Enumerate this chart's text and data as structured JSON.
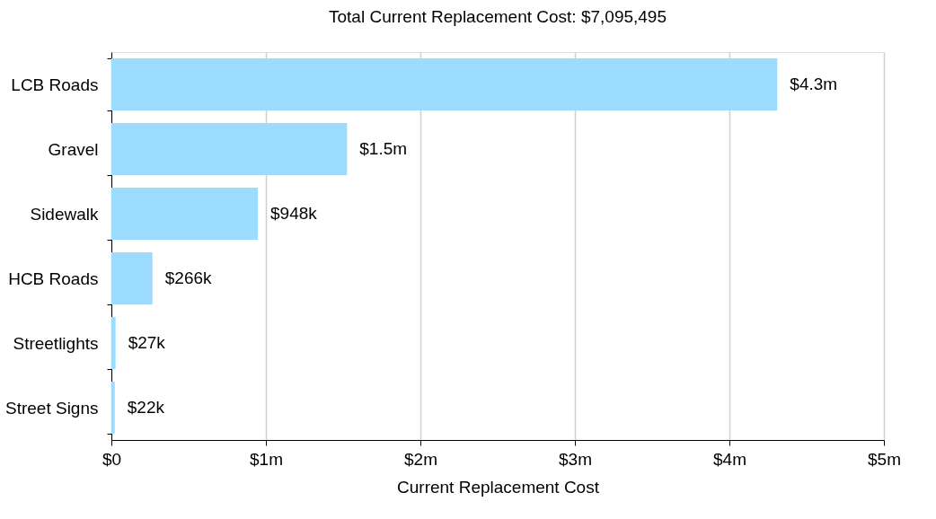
{
  "chart_data": {
    "type": "bar",
    "orientation": "horizontal",
    "title": "Total Current Replacement Cost: $7,095,495",
    "xlabel": "Current Replacement Cost",
    "categories": [
      "LCB Roads",
      "Gravel",
      "Sidewalk",
      "HCB Roads",
      "Streetlights",
      "Street Signs"
    ],
    "values": [
      4310000,
      1525000,
      948000,
      266000,
      27000,
      22000
    ],
    "value_labels": [
      "$4.3m",
      "$1.5m",
      "$948k",
      "$266k",
      "$27k",
      "$22k"
    ],
    "color": "#9bdcff",
    "xlim": [
      0,
      5000000
    ],
    "xticks": [
      {
        "value": 0,
        "label": "$0"
      },
      {
        "value": 1000000,
        "label": "$1m"
      },
      {
        "value": 2000000,
        "label": "$2m"
      },
      {
        "value": 3000000,
        "label": "$3m"
      },
      {
        "value": 4000000,
        "label": "$4m"
      },
      {
        "value": 5000000,
        "label": "$5m"
      }
    ],
    "grid": "x"
  }
}
